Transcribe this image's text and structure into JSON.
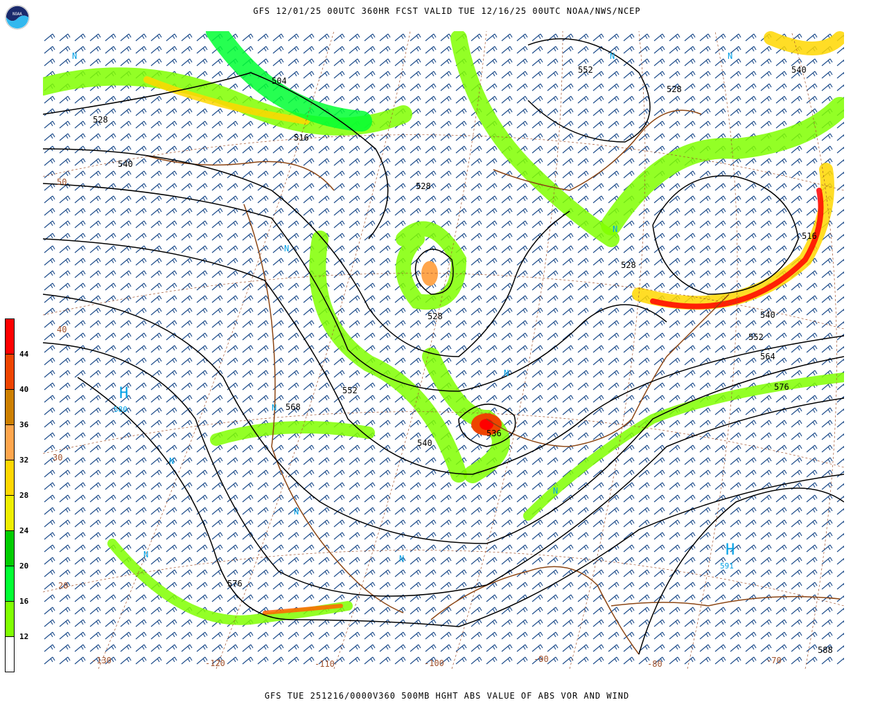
{
  "header": {
    "title": "GFS 12/01/25 00UTC 360HR FCST VALID TUE 12/16/25 00UTC NOAA/NWS/NCEP",
    "logo_text": "NOAA"
  },
  "footer": {
    "caption": "GFS TUE 251216/0000V360 500MB HGHT ABS VALUE OF ABS VOR AND WIND"
  },
  "legend": {
    "ticks": [
      "44",
      "40",
      "36",
      "32",
      "28",
      "24",
      "20",
      "16",
      "12"
    ],
    "colors": [
      "#ff0000",
      "#ee4400",
      "#cc7f00",
      "#ffa64d",
      "#ffd700",
      "#eeee00",
      "#00cc00",
      "#00ff33",
      "#80ff00",
      "#ffffff"
    ]
  },
  "map": {
    "contour_color": "#000000",
    "barb_color": "#1f4e8c",
    "coast_color": "#8b4513",
    "high_color": "#00a0e6",
    "contour_labels": [
      "504",
      "528",
      "540",
      "516",
      "528",
      "552",
      "540",
      "528",
      "516",
      "528",
      "528",
      "540",
      "552",
      "564",
      "576",
      "552",
      "568",
      "540",
      "536",
      "576",
      "588"
    ],
    "highs": [
      {
        "symbol": "H",
        "value": "580"
      },
      {
        "symbol": "H",
        "value": "591"
      }
    ],
    "n_markers": [
      "N",
      "N",
      "N",
      "N",
      "N",
      "N",
      "N",
      "N",
      "N",
      "N",
      "N",
      "N"
    ],
    "lat_labels": [
      "50",
      "40",
      "30",
      "20"
    ],
    "lon_labels": [
      "-130",
      "-120",
      "-110",
      "-100",
      "-90",
      "-80",
      "-70"
    ]
  }
}
